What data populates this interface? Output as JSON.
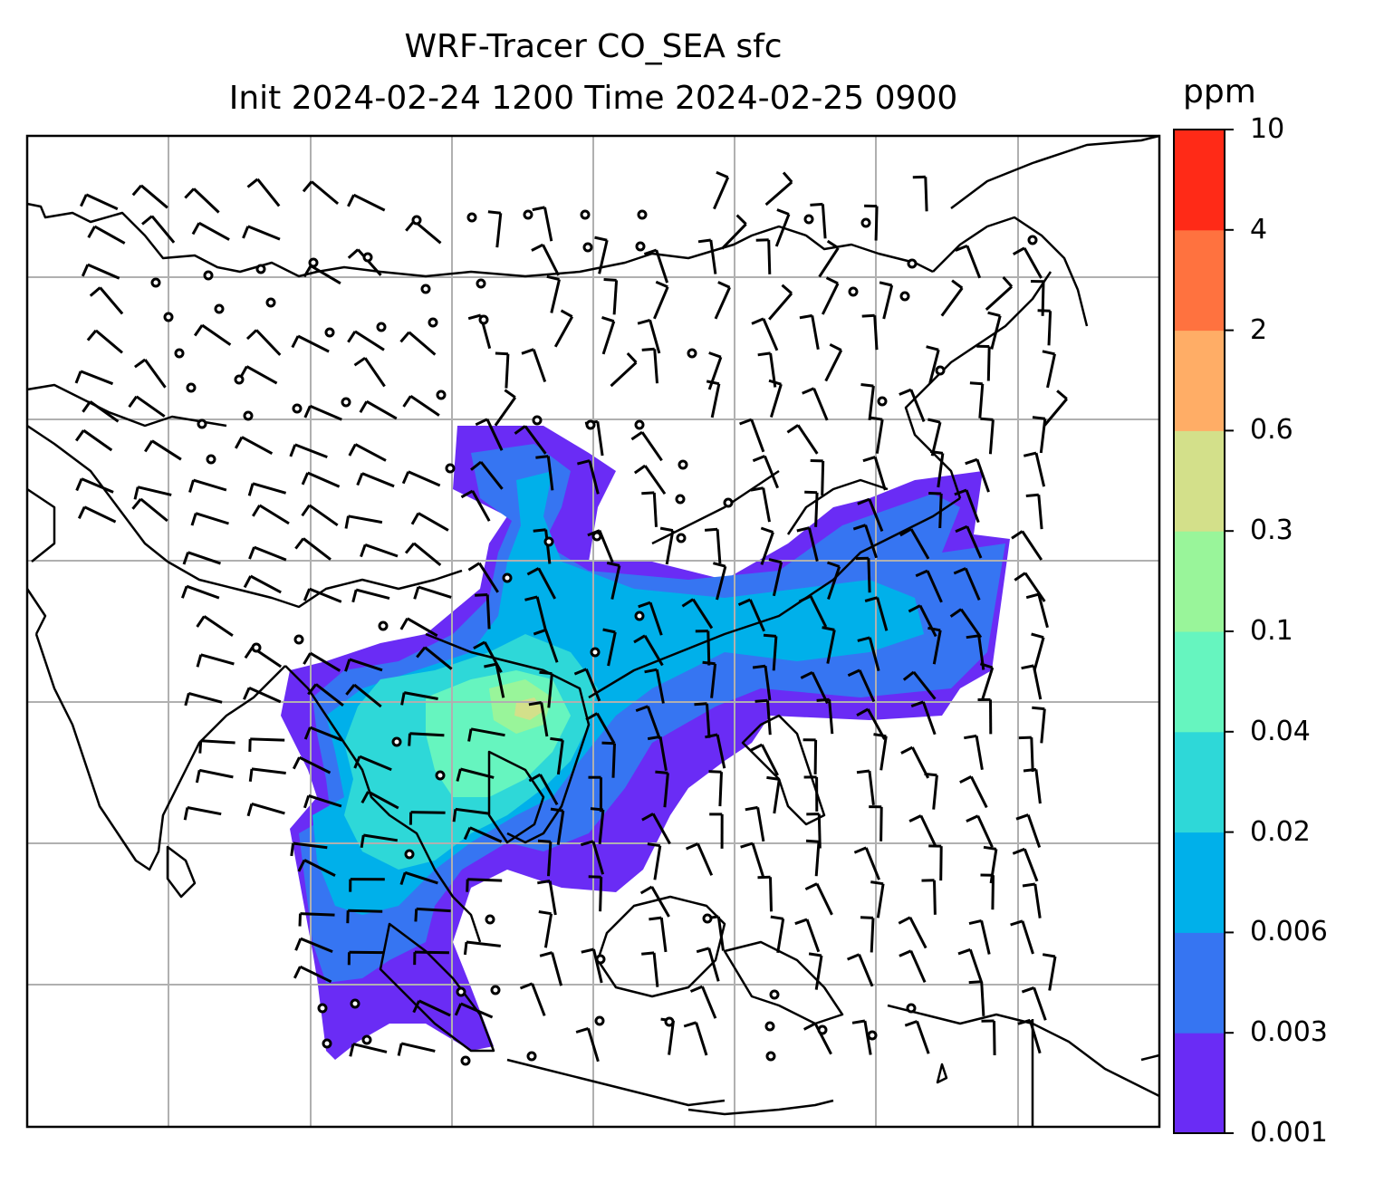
{
  "title": {
    "line1": "WRF-Tracer CO_SEA sfc",
    "line2": "Init 2024-02-24 1200 Time 2024-02-25 0900"
  },
  "colorbar": {
    "unit": "ppm",
    "ticks": [
      "0.001",
      "0.003",
      "0.006",
      "0.02",
      "0.04",
      "0.1",
      "0.3",
      "0.6",
      "2",
      "4",
      "10"
    ],
    "colors": [
      "#6a2cf5",
      "#3675f2",
      "#00b0ea",
      "#2ed8d8",
      "#66f5bf",
      "#99f59a",
      "#d3e08a",
      "#ffad66",
      "#ff723f",
      "#ff2a17"
    ]
  },
  "map": {
    "field": "CO_SEA tracer concentration",
    "gridlines": true,
    "overlay": "wind barbs"
  }
}
